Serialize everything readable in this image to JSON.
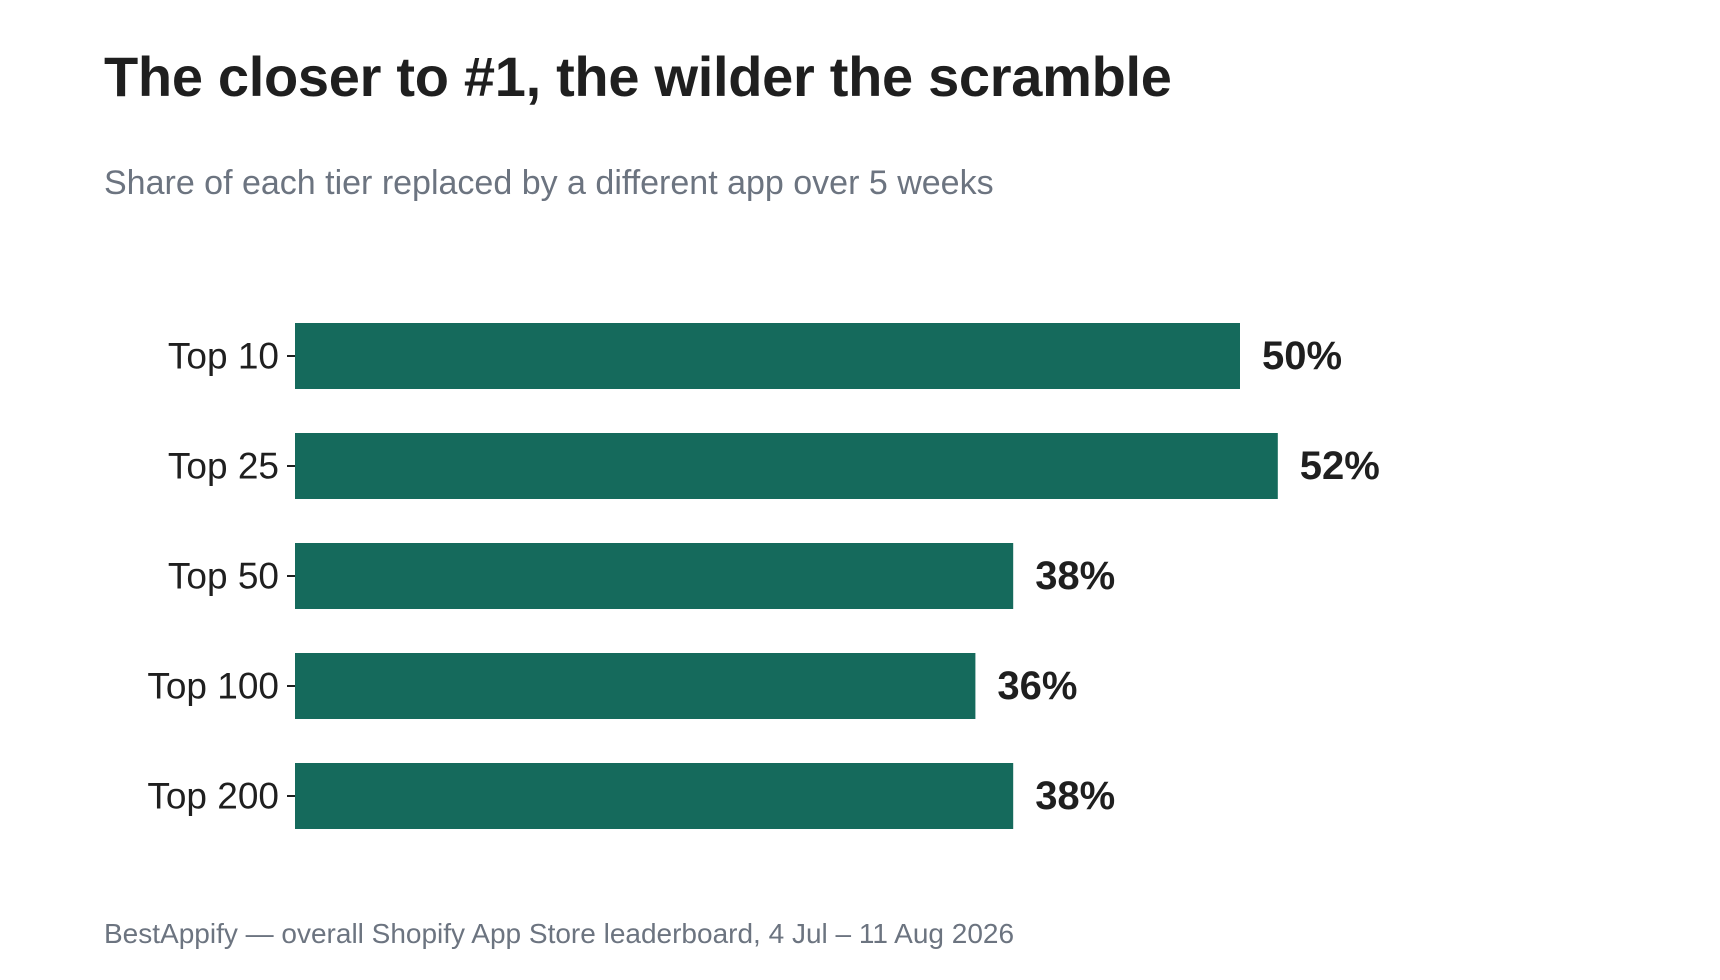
{
  "header": {
    "title": "The closer to #1, the wilder the scramble",
    "subtitle": "Share of each tier replaced by a different app over 5 weeks"
  },
  "footer": {
    "source": "BestAppify — overall Shopify App Store leaderboard, 4 Jul – 11 Aug 2026"
  },
  "colors": {
    "bar": "#156a5c",
    "text": "#1f1f1f",
    "muted": "#6c7480"
  },
  "chart_data": {
    "type": "bar",
    "orientation": "horizontal",
    "title": "The closer to #1, the wilder the scramble",
    "subtitle": "Share of each tier replaced by a different app over 5 weeks",
    "categories": [
      "Top 10",
      "Top 25",
      "Top 50",
      "Top 100",
      "Top 200"
    ],
    "values": [
      50,
      52,
      38,
      36,
      38
    ],
    "value_labels": [
      "50%",
      "52%",
      "38%",
      "36%",
      "38%"
    ],
    "unit": "%",
    "xlim": [
      0,
      60
    ],
    "grid": false,
    "legend": "none"
  }
}
